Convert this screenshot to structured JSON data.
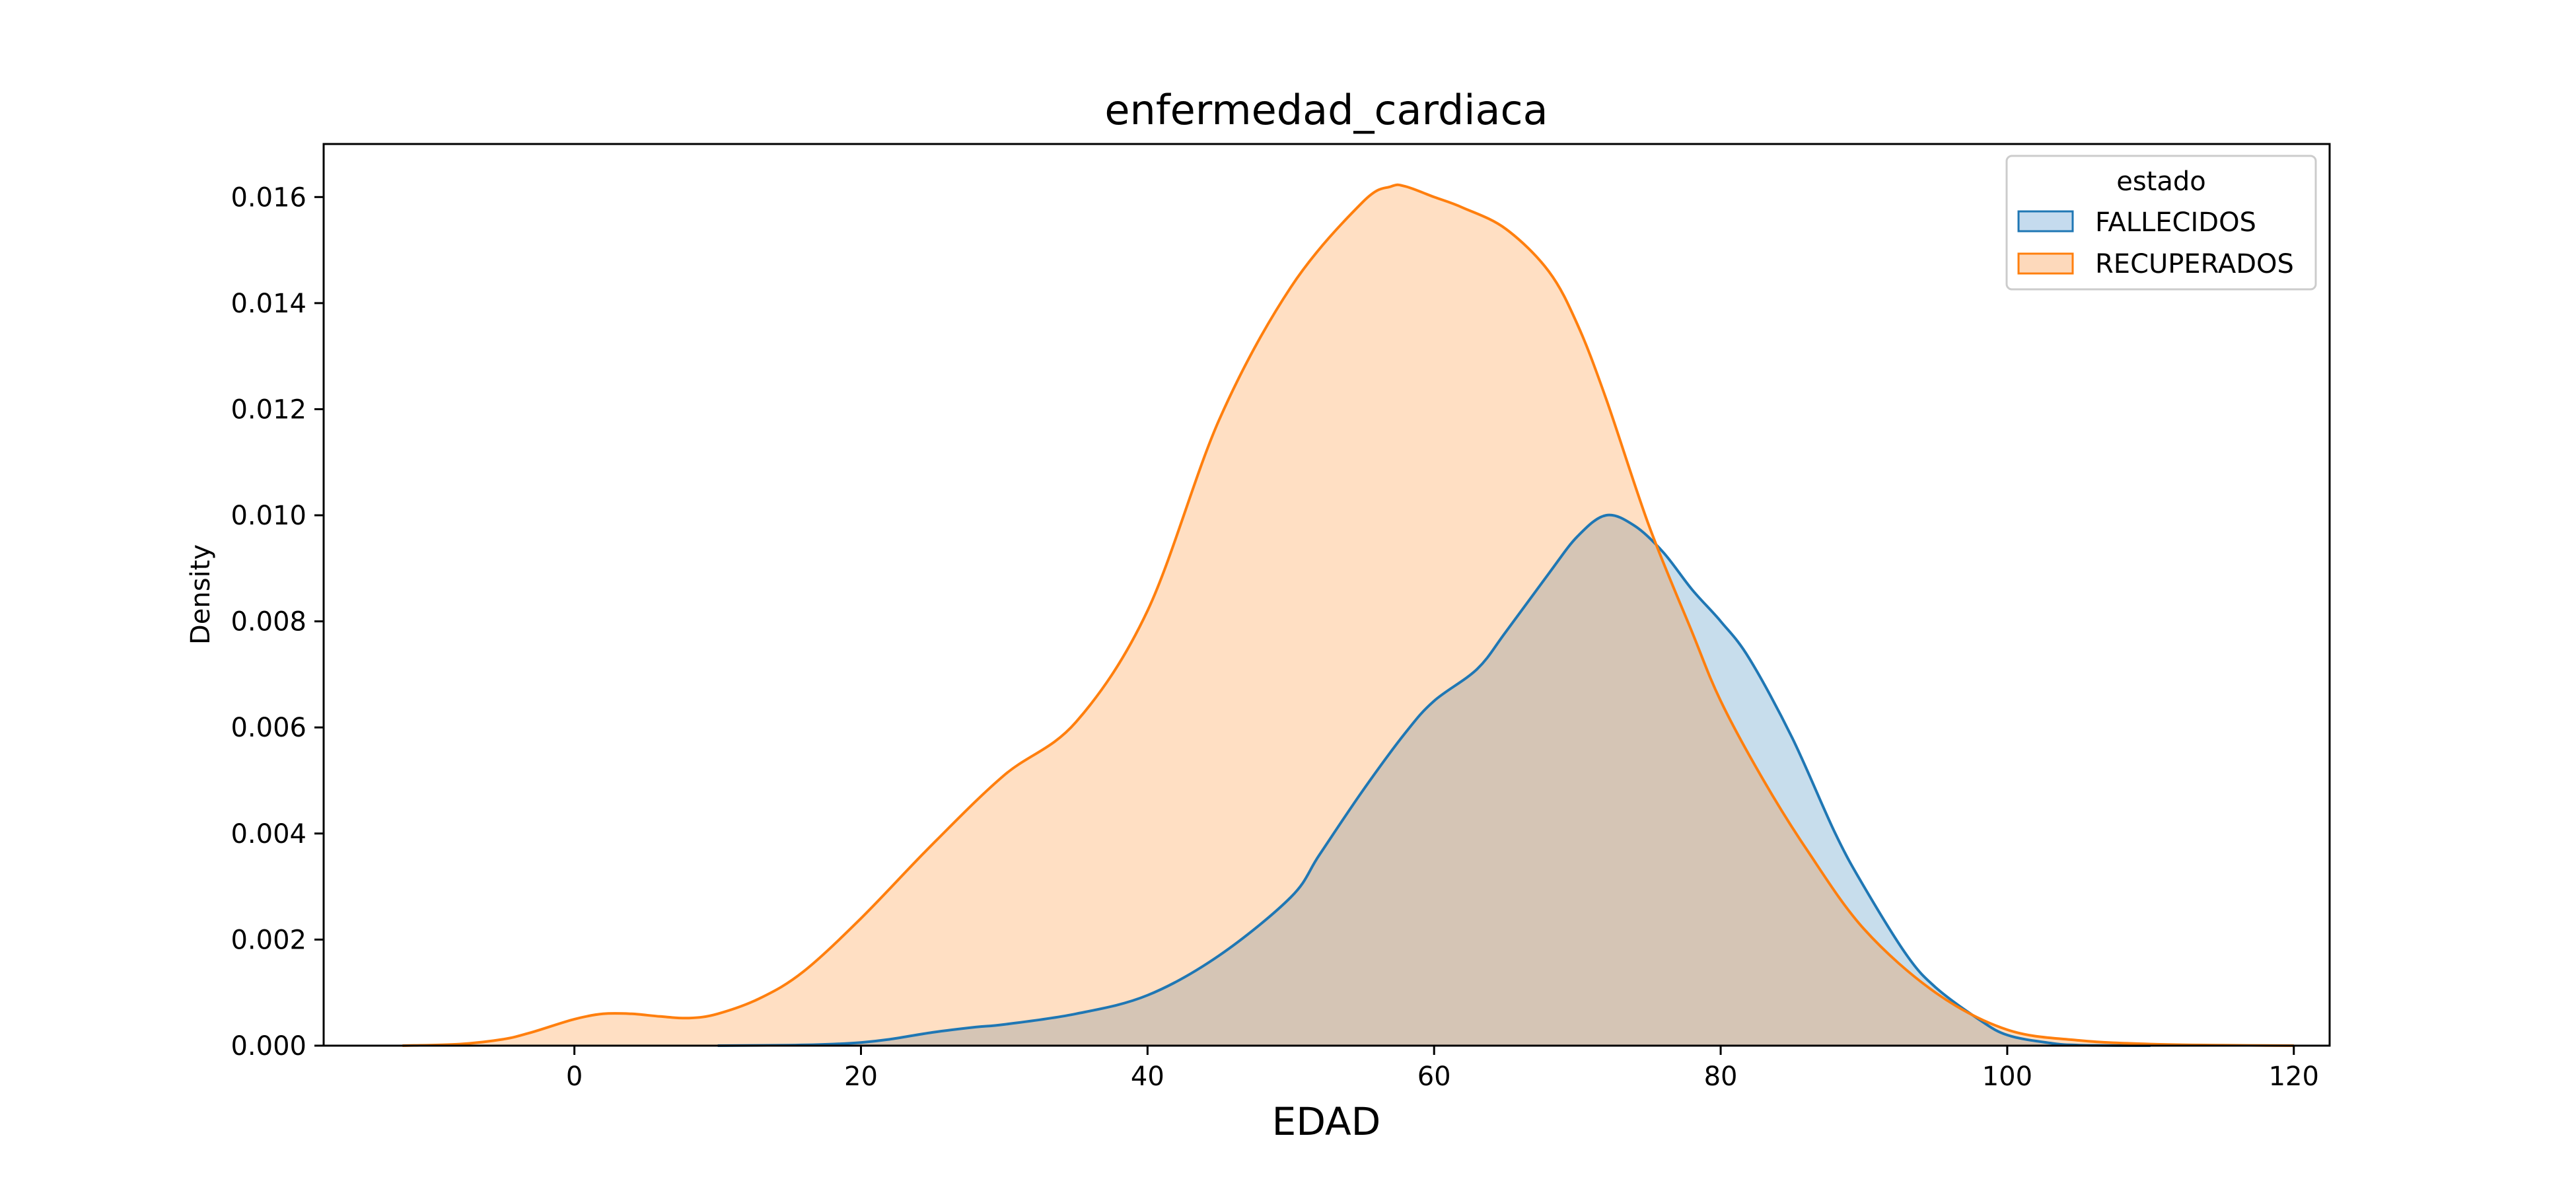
{
  "chart_data": {
    "type": "area",
    "title": "enfermedad_cardiaca",
    "xlabel": "EDAD",
    "ylabel": "Density",
    "xlim": [
      -17.5,
      122.5
    ],
    "ylim": [
      0,
      0.017
    ],
    "xticks": [
      0,
      20,
      40,
      60,
      80,
      100,
      120
    ],
    "xtick_labels": [
      "0",
      "20",
      "40",
      "60",
      "80",
      "100",
      "120"
    ],
    "yticks": [
      0,
      0.002,
      0.004,
      0.006,
      0.008,
      0.01,
      0.012,
      0.014,
      0.016
    ],
    "ytick_labels": [
      "0.000",
      "0.002",
      "0.004",
      "0.006",
      "0.008",
      "0.010",
      "0.012",
      "0.014",
      "0.016"
    ],
    "grid": false,
    "legend": {
      "title": "estado",
      "position": "top-right"
    },
    "series": [
      {
        "name": "FALLECIDOS",
        "color": "#1f77b4",
        "fill": "#c5dbee",
        "x": [
          10,
          15,
          18,
          20,
          22,
          25,
          28,
          30,
          35,
          40,
          45,
          50,
          52,
          55,
          58,
          60,
          63,
          65,
          68,
          70,
          72,
          74,
          76,
          78,
          80,
          82,
          85,
          88,
          90,
          93,
          95,
          98,
          100,
          103,
          105,
          110
        ],
        "y": [
          0.0,
          1e-05,
          3e-05,
          6e-05,
          0.00012,
          0.00025,
          0.00035,
          0.0004,
          0.0006,
          0.00095,
          0.0017,
          0.0028,
          0.0036,
          0.0048,
          0.0059,
          0.0065,
          0.0071,
          0.0078,
          0.0089,
          0.0096,
          0.01,
          0.0098,
          0.0093,
          0.0086,
          0.008,
          0.0073,
          0.0058,
          0.004,
          0.003,
          0.0017,
          0.0011,
          0.0005,
          0.0002,
          5e-05,
          1e-05,
          0.0
        ]
      },
      {
        "name": "RECUPERADOS",
        "color": "#ff7f0e",
        "fill": "#fdd9bb",
        "x": [
          -12,
          -8,
          -5,
          -3,
          0,
          2,
          4,
          6,
          8,
          10,
          13,
          16,
          20,
          25,
          30,
          35,
          40,
          45,
          50,
          55,
          57,
          58,
          60,
          62,
          65,
          68,
          70,
          72,
          75,
          78,
          80,
          83,
          86,
          90,
          95,
          100,
          105,
          110,
          115,
          120
        ],
        "y": [
          0.0,
          3e-05,
          0.00012,
          0.00025,
          0.0005,
          0.0006,
          0.0006,
          0.00055,
          0.00052,
          0.0006,
          0.0009,
          0.0014,
          0.0024,
          0.0038,
          0.0051,
          0.0061,
          0.0082,
          0.0118,
          0.0143,
          0.0159,
          0.0162,
          0.0162,
          0.016,
          0.0158,
          0.0154,
          0.0146,
          0.0136,
          0.0122,
          0.0098,
          0.0078,
          0.0065,
          0.005,
          0.0037,
          0.0022,
          0.001,
          0.0003,
          0.0001,
          3e-05,
          1e-05,
          0.0
        ]
      }
    ]
  }
}
